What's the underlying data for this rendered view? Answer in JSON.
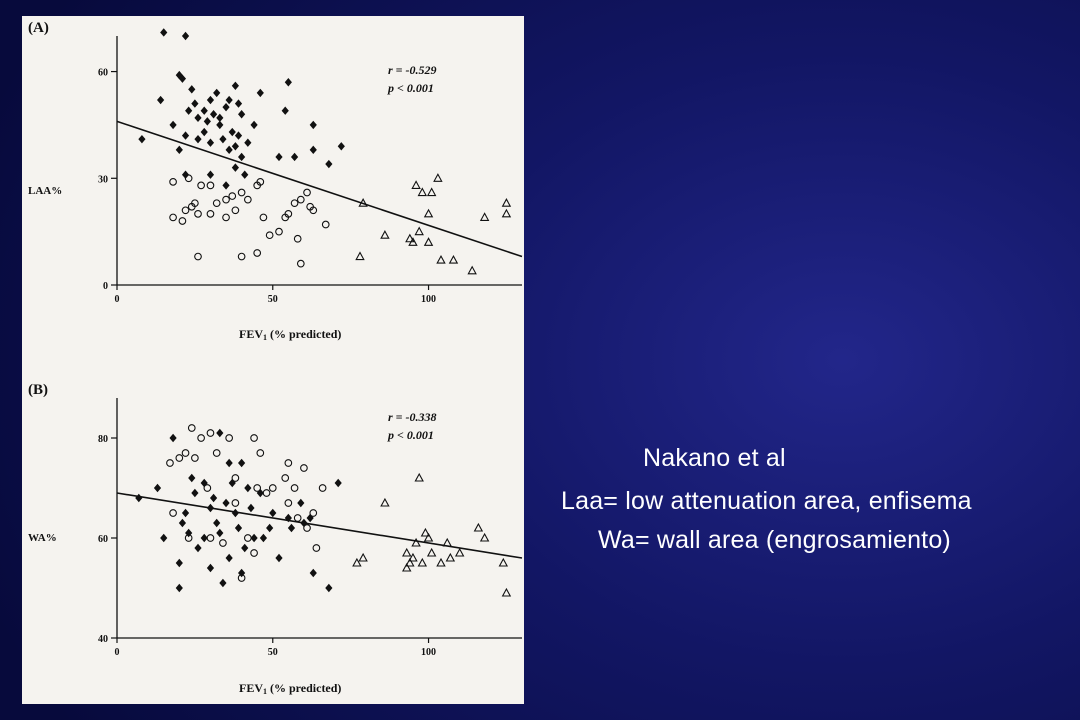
{
  "captions": {
    "title": "Nakano et al",
    "laa": "Laa= low attenuation area, enfisema",
    "wa": "Wa= wall area (engrosamiento)"
  },
  "colors": {
    "background": "#0b0f52",
    "panel": "#f5f3ef",
    "ink": "#111111",
    "caption_text": "#ffffff"
  },
  "chart_data": [
    {
      "type": "scatter",
      "panel_label": "(A)",
      "ylabel": "LAA%",
      "xlabel_main": "FEV",
      "xlabel_sub": "1",
      "xlabel_rest": " (% predicted)",
      "stat_r": "r = -0.529",
      "stat_p": "p < 0.001",
      "xlim": [
        0,
        130
      ],
      "ylim": [
        0,
        70
      ],
      "x_ticks": [
        0,
        50,
        100
      ],
      "y_ticks": [
        0,
        30,
        60
      ],
      "regression": {
        "x": [
          0,
          130
        ],
        "y": [
          46,
          8
        ]
      },
      "series": [
        {
          "marker": "diamond-filled",
          "points": [
            [
              15,
              71
            ],
            [
              22,
              70
            ],
            [
              20,
              59
            ],
            [
              21,
              58
            ],
            [
              14,
              52
            ],
            [
              8,
              41
            ],
            [
              18,
              45
            ],
            [
              22,
              42
            ],
            [
              25,
              51
            ],
            [
              30,
              52
            ],
            [
              28,
              49
            ],
            [
              32,
              54
            ],
            [
              24,
              55
            ],
            [
              38,
              56
            ],
            [
              35,
              50
            ],
            [
              40,
              48
            ],
            [
              33,
              45
            ],
            [
              28,
              43
            ],
            [
              26,
              41
            ],
            [
              30,
              40
            ],
            [
              34,
              41
            ],
            [
              36,
              38
            ],
            [
              38,
              39
            ],
            [
              42,
              40
            ],
            [
              44,
              45
            ],
            [
              40,
              36
            ],
            [
              38,
              33
            ],
            [
              35,
              28
            ],
            [
              30,
              31
            ],
            [
              22,
              31
            ],
            [
              20,
              38
            ],
            [
              26,
              47
            ],
            [
              29,
              46
            ],
            [
              33,
              47
            ],
            [
              37,
              43
            ],
            [
              39,
              42
            ],
            [
              41,
              31
            ],
            [
              46,
              54
            ],
            [
              55,
              57
            ],
            [
              54,
              49
            ],
            [
              52,
              36
            ],
            [
              57,
              36
            ],
            [
              63,
              45
            ],
            [
              63,
              38
            ],
            [
              68,
              34
            ],
            [
              72,
              39
            ],
            [
              39,
              51
            ],
            [
              36,
              52
            ],
            [
              31,
              48
            ],
            [
              23,
              49
            ]
          ]
        },
        {
          "marker": "circle-open",
          "points": [
            [
              18,
              29
            ],
            [
              23,
              30
            ],
            [
              27,
              28
            ],
            [
              18,
              19
            ],
            [
              21,
              18
            ],
            [
              24,
              22
            ],
            [
              22,
              21
            ],
            [
              26,
              20
            ],
            [
              30,
              20
            ],
            [
              32,
              23
            ],
            [
              35,
              24
            ],
            [
              37,
              25
            ],
            [
              38,
              21
            ],
            [
              40,
              26
            ],
            [
              42,
              24
            ],
            [
              45,
              28
            ],
            [
              46,
              29
            ],
            [
              49,
              14
            ],
            [
              52,
              15
            ],
            [
              54,
              19
            ],
            [
              55,
              20
            ],
            [
              57,
              23
            ],
            [
              59,
              24
            ],
            [
              61,
              26
            ],
            [
              62,
              22
            ],
            [
              63,
              21
            ],
            [
              67,
              17
            ],
            [
              59,
              6
            ],
            [
              58,
              13
            ],
            [
              45,
              9
            ],
            [
              40,
              8
            ],
            [
              26,
              8
            ],
            [
              35,
              19
            ],
            [
              30,
              28
            ],
            [
              25,
              23
            ],
            [
              47,
              19
            ]
          ]
        },
        {
          "marker": "triangle-open",
          "points": [
            [
              79,
              23
            ],
            [
              78,
              8
            ],
            [
              86,
              14
            ],
            [
              94,
              13
            ],
            [
              96,
              28
            ],
            [
              98,
              26
            ],
            [
              101,
              26
            ],
            [
              97,
              15
            ],
            [
              95,
              12
            ],
            [
              100,
              20
            ],
            [
              103,
              30
            ],
            [
              100,
              12
            ],
            [
              104,
              7
            ],
            [
              108,
              7
            ],
            [
              114,
              4
            ],
            [
              118,
              19
            ],
            [
              125,
              20
            ],
            [
              125,
              23
            ]
          ]
        }
      ]
    },
    {
      "type": "scatter",
      "panel_label": "(B)",
      "ylabel": "WA%",
      "xlabel_main": "FEV",
      "xlabel_sub": "1",
      "xlabel_rest": " (% predicted)",
      "stat_r": "r = -0.338",
      "stat_p": "p < 0.001",
      "xlim": [
        0,
        130
      ],
      "ylim": [
        40,
        88
      ],
      "x_ticks": [
        0,
        50,
        100
      ],
      "y_ticks": [
        40,
        60,
        80
      ],
      "regression": {
        "x": [
          0,
          130
        ],
        "y": [
          69,
          56
        ]
      },
      "series": [
        {
          "marker": "diamond-filled",
          "points": [
            [
              7,
              68
            ],
            [
              13,
              70
            ],
            [
              18,
              80
            ],
            [
              15,
              60
            ],
            [
              20,
              55
            ],
            [
              20,
              50
            ],
            [
              21,
              63
            ],
            [
              22,
              65
            ],
            [
              25,
              69
            ],
            [
              23,
              61
            ],
            [
              26,
              58
            ],
            [
              28,
              71
            ],
            [
              30,
              66
            ],
            [
              31,
              68
            ],
            [
              32,
              63
            ],
            [
              33,
              61
            ],
            [
              35,
              67
            ],
            [
              36,
              75
            ],
            [
              37,
              71
            ],
            [
              38,
              65
            ],
            [
              39,
              62
            ],
            [
              41,
              58
            ],
            [
              42,
              70
            ],
            [
              43,
              66
            ],
            [
              44,
              60
            ],
            [
              46,
              69
            ],
            [
              47,
              60
            ],
            [
              50,
              65
            ],
            [
              52,
              56
            ],
            [
              55,
              64
            ],
            [
              56,
              62
            ],
            [
              59,
              67
            ],
            [
              60,
              63
            ],
            [
              62,
              64
            ],
            [
              63,
              53
            ],
            [
              68,
              50
            ],
            [
              71,
              71
            ],
            [
              40,
              53
            ],
            [
              34,
              51
            ],
            [
              30,
              54
            ],
            [
              24,
              72
            ],
            [
              28,
              60
            ],
            [
              36,
              56
            ],
            [
              33,
              81
            ],
            [
              40,
              75
            ],
            [
              49,
              62
            ]
          ]
        },
        {
          "marker": "circle-open",
          "points": [
            [
              17,
              75
            ],
            [
              20,
              76
            ],
            [
              22,
              77
            ],
            [
              25,
              76
            ],
            [
              24,
              82
            ],
            [
              27,
              80
            ],
            [
              30,
              81
            ],
            [
              29,
              70
            ],
            [
              32,
              77
            ],
            [
              36,
              80
            ],
            [
              38,
              72
            ],
            [
              44,
              80
            ],
            [
              46,
              77
            ],
            [
              45,
              70
            ],
            [
              48,
              69
            ],
            [
              50,
              70
            ],
            [
              54,
              72
            ],
            [
              55,
              75
            ],
            [
              57,
              70
            ],
            [
              55,
              67
            ],
            [
              58,
              64
            ],
            [
              60,
              74
            ],
            [
              61,
              62
            ],
            [
              63,
              65
            ],
            [
              64,
              58
            ],
            [
              66,
              70
            ],
            [
              40,
              52
            ],
            [
              42,
              60
            ],
            [
              44,
              57
            ],
            [
              18,
              65
            ],
            [
              23,
              60
            ],
            [
              30,
              60
            ],
            [
              38,
              67
            ],
            [
              34,
              59
            ]
          ]
        },
        {
          "marker": "triangle-open",
          "points": [
            [
              77,
              55
            ],
            [
              79,
              56
            ],
            [
              86,
              67
            ],
            [
              93,
              57
            ],
            [
              94,
              55
            ],
            [
              95,
              56
            ],
            [
              96,
              59
            ],
            [
              97,
              72
            ],
            [
              99,
              61
            ],
            [
              100,
              60
            ],
            [
              101,
              57
            ],
            [
              104,
              55
            ],
            [
              106,
              59
            ],
            [
              107,
              56
            ],
            [
              110,
              57
            ],
            [
              116,
              62
            ],
            [
              118,
              60
            ],
            [
              124,
              55
            ],
            [
              125,
              49
            ],
            [
              93,
              54
            ],
            [
              98,
              55
            ]
          ]
        }
      ]
    }
  ]
}
